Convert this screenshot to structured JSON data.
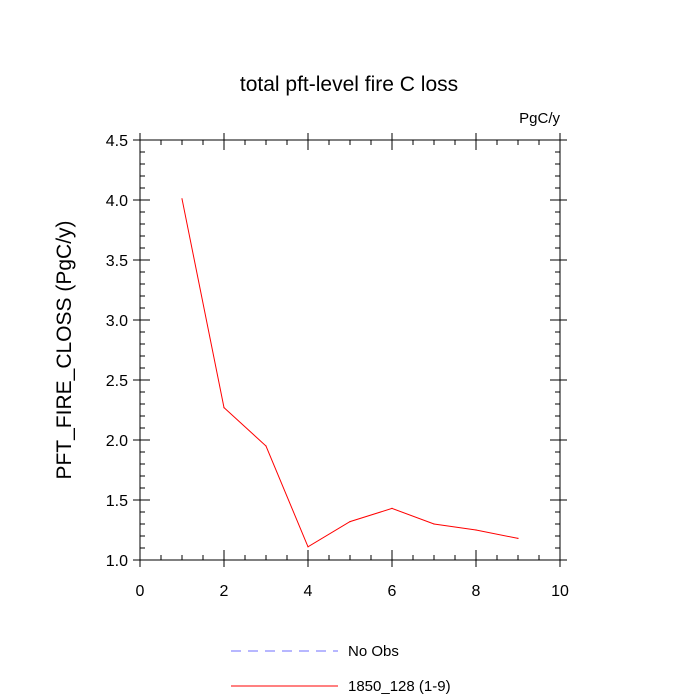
{
  "chart_data": {
    "type": "line",
    "title": "total pft-level fire C loss",
    "units": "PgC/y",
    "xlabel": "",
    "ylabel": "PFT_FIRE_CLOSS  (PgC/y)",
    "xlim": [
      0,
      10
    ],
    "ylim": [
      1.0,
      4.5
    ],
    "xticks": [
      0,
      2,
      4,
      6,
      8,
      10
    ],
    "xtick_labels": [
      "0",
      "2",
      "4",
      "6",
      "8",
      "10"
    ],
    "yticks": [
      1.0,
      1.5,
      2.0,
      2.5,
      3.0,
      3.5,
      4.0,
      4.5
    ],
    "ytick_labels": [
      "1.0",
      "1.5",
      "2.0",
      "2.5",
      "3.0",
      "3.5",
      "4.0",
      "4.5"
    ],
    "grid": false,
    "legend_position": "bottom-center",
    "series": [
      {
        "name": "1850_128 (1-9)",
        "color": "#ff0000",
        "style": "solid",
        "x": [
          1,
          2,
          3,
          4,
          5,
          6,
          7,
          8,
          9
        ],
        "y": [
          4.01,
          2.27,
          1.95,
          1.11,
          1.32,
          1.43,
          1.3,
          1.25,
          1.18
        ]
      }
    ],
    "legend": [
      {
        "label": "No Obs",
        "color": "#6f6fff",
        "style": "dashed"
      },
      {
        "label": "1850_128 (1-9)",
        "color": "#ff0000",
        "style": "solid"
      }
    ]
  }
}
